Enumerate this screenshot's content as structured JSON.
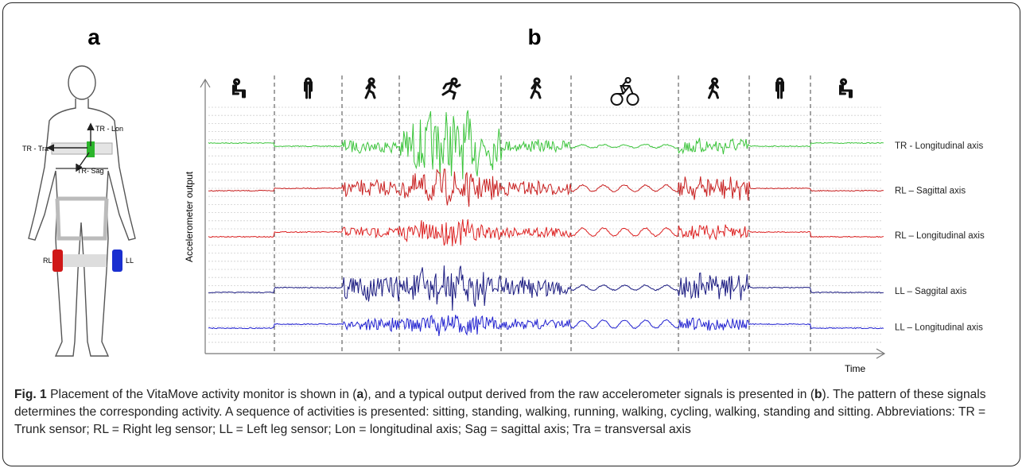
{
  "panels": {
    "a": "a",
    "b": "b"
  },
  "body_labels": {
    "tr_lon": "TR - Lon",
    "tr_tra": "TR - Tra",
    "tr_sag": "TR- Sag",
    "rl": "RL",
    "ll": "LL"
  },
  "y_axis_label": "Accelerometer output",
  "x_axis_label": "Time",
  "signal_labels": [
    "TR - Longitudinal axis",
    "RL – Sagittal axis",
    "RL – Longitudinal axis",
    "LL – Saggital axis",
    "LL – Longitudinal axis"
  ],
  "caption": {
    "label": "Fig. 1",
    "text": [
      "Placement of the VitaMove activity monitor is shown in (",
      "a",
      "), and a typical output derived from the raw accelerometer signals is presented in (",
      "b",
      "). The pattern of these signals determines the corresponding activity. A sequence of activities is presented: sitting, standing, walking, running, walking, cycling, walking, standing and sitting. Abbreviations: TR = Trunk sensor; RL = Right leg sensor; LL = Left leg sensor; Lon = longitudinal axis; Sag = sagittal axis; Tra = transversal axis"
    ]
  }
}
